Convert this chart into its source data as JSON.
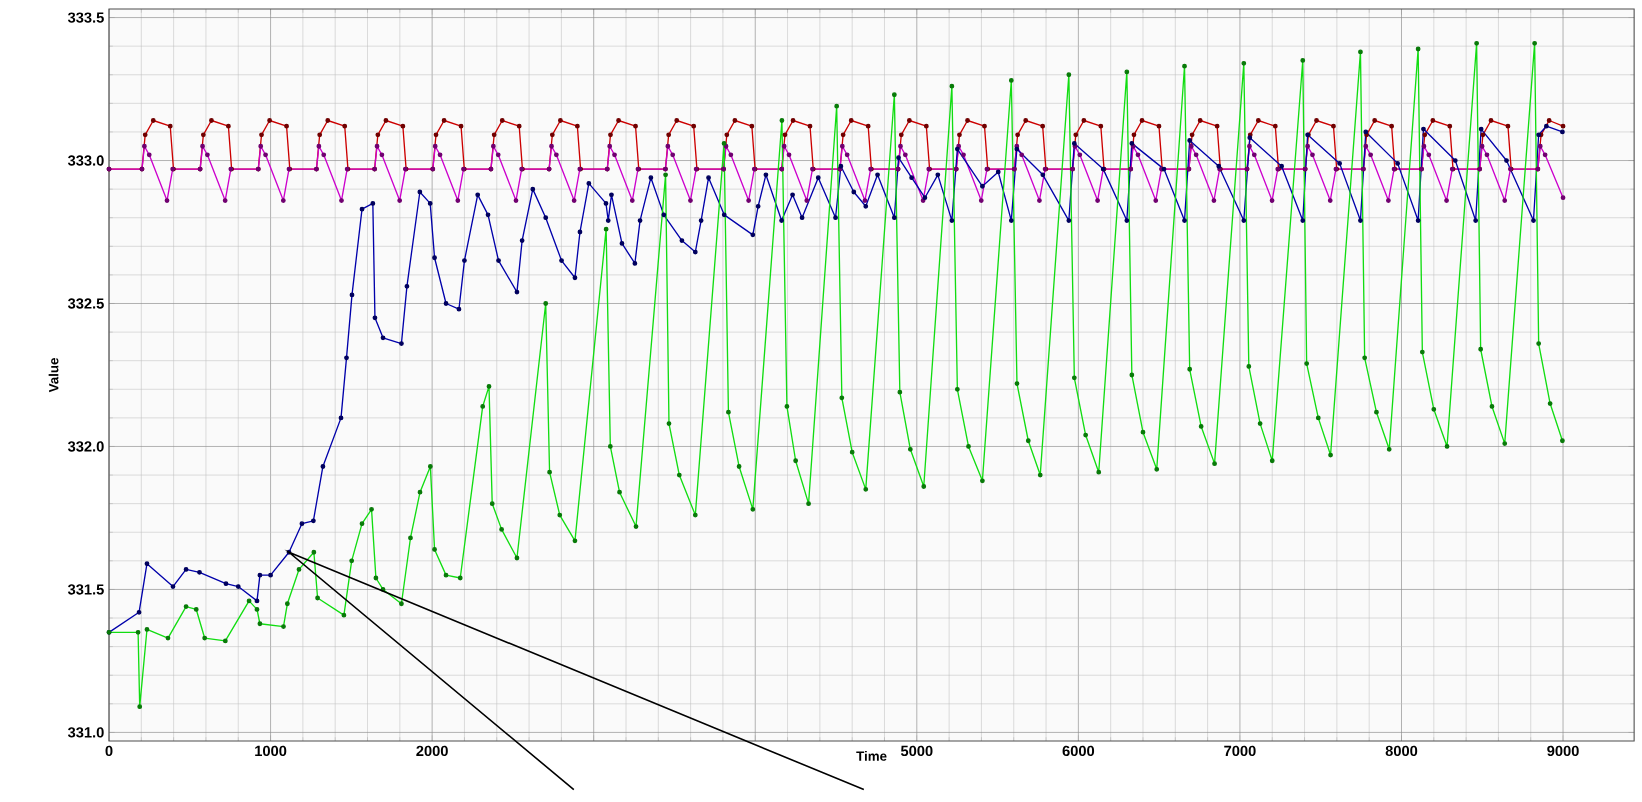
{
  "chart_data": {
    "type": "line",
    "xlabel": "Time",
    "ylabel": "Value",
    "xlim": [
      0,
      9440
    ],
    "ylim": [
      330.97,
      333.53
    ],
    "xticks": [
      0,
      1000,
      2000,
      {
        "value": 3000,
        "label": null
      },
      {
        "value": 4000,
        "label": null
      },
      5000,
      6000,
      7000,
      8000,
      9000
    ],
    "yticks": [
      {
        "value": 331,
        "label": "331.0"
      },
      331.5,
      {
        "value": 332,
        "label": "332.0"
      },
      332.5,
      {
        "value": 333,
        "label": "333.0"
      },
      333.5
    ],
    "grid": true,
    "marker": "circle",
    "line_style": "solid",
    "series": [
      {
        "color": "#cc0000",
        "x": [
          0,
          204,
          224,
          274,
          379,
          399,
          564,
          584,
          634,
          739,
          759,
          924,
          944,
          994,
          1099,
          1119,
          1284,
          1304,
          1354,
          1459,
          1479,
          1644,
          1664,
          1714,
          1819,
          1839,
          2004,
          2024,
          2074,
          2179,
          2199,
          2364,
          2384,
          2434,
          2539,
          2559,
          2724,
          2744,
          2794,
          2899,
          2919,
          3084,
          3104,
          3154,
          3259,
          3279,
          3444,
          3464,
          3514,
          3619,
          3639,
          3804,
          3824,
          3874,
          3979,
          3999,
          4164,
          4184,
          4234,
          4339,
          4359,
          4524,
          4544,
          4594,
          4699,
          4719,
          4884,
          4904,
          4954,
          5059,
          5079,
          5244,
          5264,
          5314,
          5419,
          5439,
          5604,
          5624,
          5674,
          5779,
          5799,
          5964,
          5984,
          6034,
          6139,
          6159,
          6324,
          6344,
          6394,
          6499,
          6519,
          6684,
          6704,
          6754,
          6859,
          6879,
          7044,
          7064,
          7114,
          7219,
          7239,
          7404,
          7424,
          7474,
          7579,
          7599,
          7764,
          7784,
          7834,
          7939,
          7959,
          8124,
          8144,
          8194,
          8299,
          8319,
          8484,
          8504,
          8554,
          8659,
          8679,
          8844,
          8864,
          8914,
          9000
        ],
        "values": [
          332.97,
          332.97,
          333.09,
          333.14,
          333.12,
          332.97,
          332.97,
          333.09,
          333.14,
          333.12,
          332.97,
          332.97,
          333.09,
          333.14,
          333.12,
          332.97,
          332.97,
          333.09,
          333.14,
          333.12,
          332.97,
          332.97,
          333.09,
          333.14,
          333.12,
          332.97,
          332.97,
          333.09,
          333.14,
          333.12,
          332.97,
          332.97,
          333.09,
          333.14,
          333.12,
          332.97,
          332.97,
          333.09,
          333.14,
          333.12,
          332.97,
          332.97,
          333.09,
          333.14,
          333.12,
          332.97,
          332.97,
          333.09,
          333.14,
          333.12,
          332.97,
          332.97,
          333.09,
          333.14,
          333.12,
          332.97,
          332.97,
          333.09,
          333.14,
          333.12,
          332.97,
          332.97,
          333.09,
          333.14,
          333.12,
          332.97,
          332.97,
          333.09,
          333.14,
          333.12,
          332.97,
          332.97,
          333.09,
          333.14,
          333.12,
          332.97,
          332.97,
          333.09,
          333.14,
          333.12,
          332.97,
          332.97,
          333.09,
          333.14,
          333.12,
          332.97,
          332.97,
          333.09,
          333.14,
          333.12,
          332.97,
          332.97,
          333.09,
          333.14,
          333.12,
          332.97,
          332.97,
          333.09,
          333.14,
          333.12,
          332.97,
          332.97,
          333.09,
          333.14,
          333.12,
          332.97,
          332.97,
          333.09,
          333.14,
          333.12,
          332.97,
          332.97,
          333.09,
          333.14,
          333.12,
          332.97,
          332.97,
          333.09,
          333.14,
          333.12,
          332.97,
          332.97,
          333.09,
          333.14,
          333.12
        ]
      },
      {
        "color": "#cc00cc",
        "x": [
          0,
          204,
          219,
          249,
          359,
          394,
          564,
          579,
          609,
          719,
          754,
          924,
          939,
          969,
          1079,
          1114,
          1284,
          1299,
          1329,
          1439,
          1474,
          1644,
          1659,
          1689,
          1799,
          1834,
          2004,
          2019,
          2049,
          2159,
          2194,
          2364,
          2379,
          2409,
          2519,
          2554,
          2724,
          2739,
          2769,
          2879,
          2914,
          3084,
          3099,
          3129,
          3239,
          3274,
          3444,
          3459,
          3489,
          3599,
          3634,
          3804,
          3819,
          3849,
          3959,
          3994,
          4164,
          4179,
          4209,
          4319,
          4354,
          4524,
          4539,
          4569,
          4679,
          4714,
          4884,
          4899,
          4929,
          5039,
          5074,
          5244,
          5259,
          5289,
          5399,
          5434,
          5604,
          5619,
          5649,
          5759,
          5794,
          5964,
          5979,
          6009,
          6119,
          6154,
          6324,
          6339,
          6369,
          6479,
          6514,
          6684,
          6699,
          6729,
          6839,
          6874,
          7044,
          7059,
          7089,
          7199,
          7234,
          7404,
          7419,
          7449,
          7559,
          7594,
          7764,
          7779,
          7809,
          7919,
          7954,
          8124,
          8139,
          8169,
          8279,
          8314,
          8484,
          8499,
          8529,
          8639,
          8674,
          8844,
          8859,
          8889,
          9000
        ],
        "values": [
          332.97,
          332.97,
          333.05,
          333.02,
          332.86,
          332.97,
          332.97,
          333.05,
          333.02,
          332.86,
          332.97,
          332.97,
          333.05,
          333.02,
          332.86,
          332.97,
          332.97,
          333.05,
          333.02,
          332.86,
          332.97,
          332.97,
          333.05,
          333.02,
          332.86,
          332.97,
          332.97,
          333.05,
          333.02,
          332.86,
          332.97,
          332.97,
          333.05,
          333.02,
          332.86,
          332.97,
          332.97,
          333.05,
          333.02,
          332.86,
          332.97,
          332.97,
          333.05,
          333.02,
          332.86,
          332.97,
          332.97,
          333.05,
          333.02,
          332.86,
          332.97,
          332.97,
          333.05,
          333.02,
          332.86,
          332.97,
          332.97,
          333.05,
          333.02,
          332.86,
          332.97,
          332.97,
          333.05,
          333.02,
          332.86,
          332.97,
          332.97,
          333.05,
          333.02,
          332.86,
          332.97,
          332.97,
          333.05,
          333.02,
          332.86,
          332.97,
          332.97,
          333.05,
          333.02,
          332.86,
          332.97,
          332.97,
          333.05,
          333.02,
          332.86,
          332.97,
          332.97,
          333.05,
          333.02,
          332.86,
          332.97,
          332.97,
          333.05,
          333.02,
          332.86,
          332.97,
          332.97,
          333.05,
          333.02,
          332.86,
          332.97,
          332.97,
          333.05,
          333.02,
          332.86,
          332.97,
          332.97,
          333.05,
          333.02,
          332.86,
          332.97,
          332.97,
          333.05,
          333.02,
          332.86,
          332.97,
          332.97,
          333.05,
          333.02,
          332.86,
          332.97,
          332.97,
          333.05,
          333.02,
          332.87
        ]
      },
      {
        "color": "#0000aa",
        "x": [
          0,
          186,
          235,
          396,
          477,
          560,
          724,
          800,
          916,
          934,
          1000,
          1114,
          1194,
          1265,
          1324,
          1436,
          1470,
          1504,
          1566,
          1633,
          1646,
          1696,
          1810,
          1844,
          1924,
          1988,
          2015,
          2086,
          2166,
          2200,
          2282,
          2346,
          2411,
          2525,
          2557,
          2623,
          2703,
          2801,
          2884,
          2915,
          2970,
          3076,
          3090,
          3110,
          3175,
          3255,
          3287,
          3354,
          3434,
          3546,
          3629,
          3665,
          3711,
          3808,
          3985,
          4018,
          4066,
          4163,
          4231,
          4290,
          4390,
          4497,
          4530,
          4610,
          4684,
          4757,
          4861,
          4887,
          4968,
          5050,
          5130,
          5217,
          5251,
          5406,
          5504,
          5585,
          5619,
          5780,
          5941,
          5975,
          6154,
          6300,
          6331,
          6530,
          6657,
          6689,
          6869,
          7024,
          7061,
          7258,
          7389,
          7419,
          7617,
          7746,
          7779,
          7976,
          8103,
          8136,
          8333,
          8459,
          8493,
          8650,
          8817,
          8849,
          8897,
          8996
        ],
        "values": [
          331.35,
          331.42,
          331.59,
          331.51,
          331.57,
          331.56,
          331.52,
          331.51,
          331.46,
          331.55,
          331.55,
          331.63,
          331.73,
          331.74,
          331.93,
          332.1,
          332.31,
          332.53,
          332.83,
          332.85,
          332.45,
          332.38,
          332.36,
          332.56,
          332.89,
          332.85,
          332.66,
          332.5,
          332.48,
          332.65,
          332.88,
          332.81,
          332.65,
          332.54,
          332.72,
          332.9,
          332.8,
          332.65,
          332.59,
          332.75,
          332.92,
          332.85,
          332.79,
          332.88,
          332.71,
          332.64,
          332.79,
          332.94,
          332.81,
          332.72,
          332.68,
          332.79,
          332.94,
          332.81,
          332.74,
          332.84,
          332.95,
          332.79,
          332.88,
          332.8,
          332.94,
          332.8,
          332.98,
          332.89,
          332.84,
          332.95,
          332.8,
          333.01,
          332.94,
          332.87,
          332.95,
          332.79,
          333.04,
          332.91,
          332.96,
          332.79,
          333.04,
          332.95,
          332.79,
          333.06,
          332.97,
          332.79,
          333.06,
          332.97,
          332.79,
          333.07,
          332.98,
          332.79,
          333.08,
          332.98,
          332.79,
          333.09,
          332.99,
          332.79,
          333.1,
          332.99,
          332.79,
          333.11,
          333.0,
          332.79,
          333.11,
          333.0,
          332.79,
          333.09,
          333.12,
          333.1
        ]
      },
      {
        "color": "#11dd11",
        "x": [
          0,
          180,
          190,
          235,
          365,
          477,
          540,
          592,
          720,
          867,
          916,
          934,
          1080,
          1104,
          1176,
          1268,
          1291,
          1454,
          1502,
          1566,
          1625,
          1652,
          1696,
          1810,
          1866,
          1925,
          1989,
          2015,
          2086,
          2174,
          2313,
          2352,
          2372,
          2430,
          2525,
          2703,
          2727,
          2790,
          2884,
          3077,
          3103,
          3160,
          3262,
          3445,
          3466,
          3530,
          3629,
          3807,
          3834,
          3900,
          3985,
          4165,
          4196,
          4250,
          4330,
          4504,
          4536,
          4600,
          4684,
          4861,
          4895,
          4960,
          5043,
          5217,
          5251,
          5320,
          5406,
          5585,
          5620,
          5690,
          5764,
          5941,
          5975,
          6045,
          6126,
          6300,
          6331,
          6400,
          6485,
          6657,
          6689,
          6760,
          6843,
          7024,
          7055,
          7125,
          7200,
          7389,
          7413,
          7485,
          7561,
          7746,
          7772,
          7845,
          7924,
          8103,
          8129,
          8200,
          8282,
          8465,
          8490,
          8560,
          8639,
          8824,
          8849,
          8920,
          8996
        ],
        "values": [
          331.35,
          331.35,
          331.09,
          331.36,
          331.33,
          331.44,
          331.43,
          331.33,
          331.32,
          331.46,
          331.43,
          331.38,
          331.37,
          331.45,
          331.57,
          331.63,
          331.47,
          331.41,
          331.6,
          331.73,
          331.78,
          331.54,
          331.5,
          331.45,
          331.68,
          331.84,
          331.93,
          331.64,
          331.55,
          331.54,
          332.14,
          332.21,
          331.8,
          331.71,
          331.61,
          332.5,
          331.91,
          331.76,
          331.67,
          332.76,
          332.0,
          331.84,
          331.72,
          332.95,
          332.08,
          331.9,
          331.76,
          333.06,
          332.12,
          331.93,
          331.78,
          333.14,
          332.14,
          331.95,
          331.8,
          333.19,
          332.17,
          331.98,
          331.85,
          333.23,
          332.19,
          331.99,
          331.86,
          333.26,
          332.2,
          332.0,
          331.88,
          333.28,
          332.22,
          332.02,
          331.9,
          333.3,
          332.24,
          332.04,
          331.91,
          333.31,
          332.25,
          332.05,
          331.92,
          333.33,
          332.27,
          332.07,
          331.94,
          333.34,
          332.28,
          332.08,
          331.95,
          333.35,
          332.29,
          332.1,
          331.97,
          333.38,
          332.31,
          332.12,
          331.99,
          333.39,
          332.33,
          332.13,
          332.0,
          333.41,
          332.34,
          332.14,
          332.01,
          333.41,
          332.36,
          332.15,
          332.02
        ]
      }
    ]
  }
}
